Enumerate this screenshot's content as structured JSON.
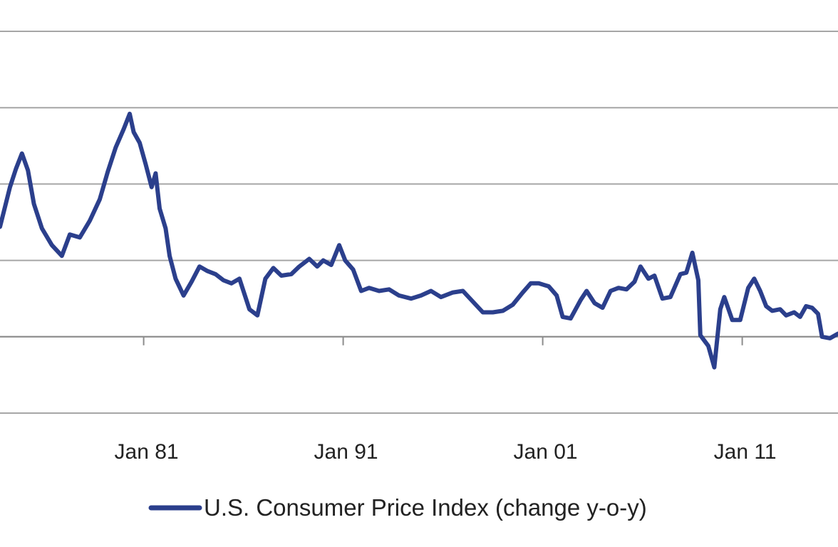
{
  "chart_data": {
    "type": "line",
    "title": "",
    "xlabel": "",
    "ylabel": "",
    "x_tick_labels": [
      "Jan 81",
      "Jan 91",
      "Jan 01",
      "Jan 11"
    ],
    "x_tick_years": [
      1981,
      1991,
      2001,
      2011
    ],
    "xlim": [
      1973.8,
      2015.8
    ],
    "ylim": [
      -5,
      20
    ],
    "y_gridlines": [
      -5,
      0,
      5,
      10,
      15,
      20
    ],
    "grid": true,
    "legend": {
      "position": "bottom",
      "entries": [
        "U.S. Consumer Price Index (change y-o-y)"
      ]
    },
    "colors": {
      "series": "#2B3F8C",
      "grid": "#a6a6a6",
      "axis": "#8c8c8c"
    },
    "series": [
      {
        "name": "U.S. Consumer Price Index (change y-o-y)",
        "points": [
          [
            1973.8,
            7.2
          ],
          [
            1974.3,
            9.8
          ],
          [
            1974.6,
            11.0
          ],
          [
            1974.9,
            12.0
          ],
          [
            1975.2,
            10.9
          ],
          [
            1975.5,
            8.7
          ],
          [
            1975.9,
            7.1
          ],
          [
            1976.4,
            6.0
          ],
          [
            1976.9,
            5.3
          ],
          [
            1977.3,
            6.7
          ],
          [
            1977.8,
            6.5
          ],
          [
            1978.3,
            7.6
          ],
          [
            1978.8,
            9.0
          ],
          [
            1979.2,
            10.8
          ],
          [
            1979.6,
            12.4
          ],
          [
            1980.0,
            13.6
          ],
          [
            1980.3,
            14.6
          ],
          [
            1980.5,
            13.4
          ],
          [
            1980.8,
            12.7
          ],
          [
            1981.1,
            11.3
          ],
          [
            1981.4,
            9.8
          ],
          [
            1981.6,
            10.7
          ],
          [
            1981.8,
            8.4
          ],
          [
            1982.1,
            7.1
          ],
          [
            1982.3,
            5.3
          ],
          [
            1982.6,
            3.8
          ],
          [
            1983.0,
            2.7
          ],
          [
            1983.4,
            3.6
          ],
          [
            1983.8,
            4.6
          ],
          [
            1984.2,
            4.3
          ],
          [
            1984.6,
            4.1
          ],
          [
            1985.0,
            3.7
          ],
          [
            1985.4,
            3.5
          ],
          [
            1985.8,
            3.8
          ],
          [
            1986.3,
            1.8
          ],
          [
            1986.7,
            1.4
          ],
          [
            1987.1,
            3.8
          ],
          [
            1987.5,
            4.5
          ],
          [
            1987.9,
            4.0
          ],
          [
            1988.4,
            4.1
          ],
          [
            1988.8,
            4.6
          ],
          [
            1989.3,
            5.1
          ],
          [
            1989.7,
            4.6
          ],
          [
            1990.0,
            5.0
          ],
          [
            1990.4,
            4.7
          ],
          [
            1990.8,
            6.0
          ],
          [
            1991.1,
            5.0
          ],
          [
            1991.5,
            4.4
          ],
          [
            1991.9,
            3.0
          ],
          [
            1992.3,
            3.2
          ],
          [
            1992.8,
            3.0
          ],
          [
            1993.3,
            3.1
          ],
          [
            1993.8,
            2.7
          ],
          [
            1994.4,
            2.5
          ],
          [
            1994.9,
            2.7
          ],
          [
            1995.4,
            3.0
          ],
          [
            1995.9,
            2.6
          ],
          [
            1996.5,
            2.9
          ],
          [
            1997.0,
            3.0
          ],
          [
            1997.5,
            2.3
          ],
          [
            1998.0,
            1.6
          ],
          [
            1998.5,
            1.6
          ],
          [
            1999.0,
            1.7
          ],
          [
            1999.5,
            2.1
          ],
          [
            2000.0,
            2.9
          ],
          [
            2000.4,
            3.5
          ],
          [
            2000.8,
            3.5
          ],
          [
            2001.3,
            3.3
          ],
          [
            2001.7,
            2.7
          ],
          [
            2002.0,
            1.3
          ],
          [
            2002.4,
            1.2
          ],
          [
            2002.9,
            2.4
          ],
          [
            2003.2,
            3.0
          ],
          [
            2003.6,
            2.2
          ],
          [
            2004.0,
            1.9
          ],
          [
            2004.4,
            3.0
          ],
          [
            2004.8,
            3.2
          ],
          [
            2005.2,
            3.1
          ],
          [
            2005.6,
            3.6
          ],
          [
            2005.9,
            4.6
          ],
          [
            2006.3,
            3.8
          ],
          [
            2006.6,
            4.0
          ],
          [
            2007.0,
            2.5
          ],
          [
            2007.4,
            2.6
          ],
          [
            2007.9,
            4.1
          ],
          [
            2008.2,
            4.2
          ],
          [
            2008.5,
            5.5
          ],
          [
            2008.8,
            3.7
          ],
          [
            2008.9,
            0.1
          ],
          [
            2009.3,
            -0.6
          ],
          [
            2009.6,
            -2.0
          ],
          [
            2009.9,
            1.8
          ],
          [
            2010.1,
            2.6
          ],
          [
            2010.5,
            1.1
          ],
          [
            2010.9,
            1.1
          ],
          [
            2011.3,
            3.2
          ],
          [
            2011.6,
            3.8
          ],
          [
            2011.9,
            3.0
          ],
          [
            2012.2,
            2.0
          ],
          [
            2012.5,
            1.7
          ],
          [
            2012.9,
            1.8
          ],
          [
            2013.2,
            1.4
          ],
          [
            2013.6,
            1.6
          ],
          [
            2013.9,
            1.3
          ],
          [
            2014.2,
            2.0
          ],
          [
            2014.5,
            1.9
          ],
          [
            2014.8,
            1.5
          ],
          [
            2015.0,
            0.0
          ],
          [
            2015.4,
            -0.1
          ],
          [
            2015.8,
            0.2
          ]
        ]
      }
    ]
  }
}
